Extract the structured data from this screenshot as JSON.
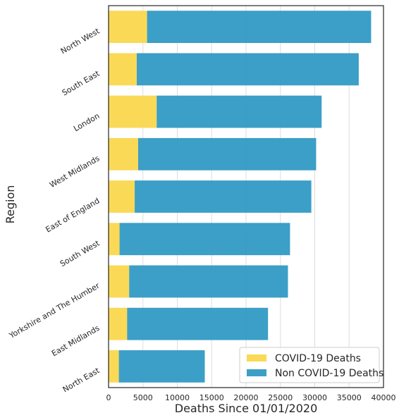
{
  "chart_data": {
    "type": "bar",
    "orientation": "horizontal",
    "stacked": true,
    "categories": [
      "North West",
      "South East",
      "London",
      "West Midlands",
      "East of England",
      "South West",
      "Yorkshire and The Humber",
      "East Midlands",
      "North East"
    ],
    "series": [
      {
        "name": "COVID-19 Deaths",
        "color": "#fad74d",
        "values": [
          5600,
          4100,
          7000,
          4300,
          3800,
          1600,
          3000,
          2700,
          1500
        ]
      },
      {
        "name": "Non COVID-19 Deaths",
        "color": "#319ac4",
        "values": [
          32600,
          32300,
          24000,
          25900,
          25700,
          24800,
          23100,
          20500,
          12500
        ]
      }
    ],
    "xlabel": "Deaths Since 01/01/2020",
    "ylabel": "Region",
    "xlim": [
      0,
      40000
    ],
    "xticks": [
      0,
      5000,
      10000,
      15000,
      20000,
      25000,
      30000,
      35000,
      40000
    ],
    "grid": "vertical",
    "legend_position": "lower-right"
  }
}
